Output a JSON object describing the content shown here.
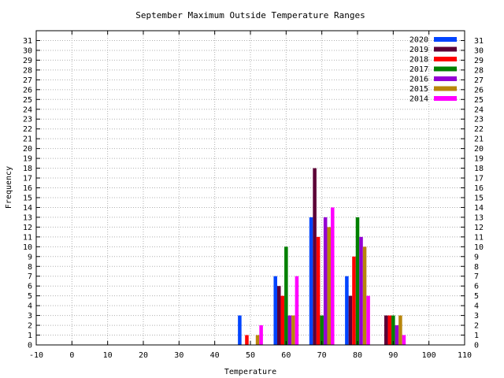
{
  "chart_data": {
    "type": "bar",
    "title": "September Maximum Outside Temperature Ranges",
    "xlabel": "Temperature",
    "ylabel": "Frequency",
    "xlim": [
      -10,
      110
    ],
    "ylim": [
      0,
      32
    ],
    "xticks": [
      "-10",
      "0",
      "10",
      "20",
      "30",
      "40",
      "50",
      "60",
      "70",
      "80",
      "90",
      "100",
      "110"
    ],
    "yticks": [
      "0",
      "1",
      "2",
      "3",
      "4",
      "5",
      "6",
      "7",
      "8",
      "9",
      "10",
      "11",
      "12",
      "13",
      "14",
      "15",
      "16",
      "17",
      "18",
      "19",
      "20",
      "21",
      "22",
      "23",
      "24",
      "25",
      "26",
      "27",
      "28",
      "29",
      "30",
      "31"
    ],
    "grid": true,
    "legend_position": "top-right",
    "categories": [
      50,
      60,
      70,
      80,
      90
    ],
    "series": [
      {
        "name": "2020",
        "color": "#0044ff",
        "values": [
          3,
          7,
          13,
          7,
          0
        ]
      },
      {
        "name": "2019",
        "color": "#5c0036",
        "values": [
          0,
          6,
          18,
          5,
          3
        ]
      },
      {
        "name": "2018",
        "color": "#ff0000",
        "values": [
          1,
          5,
          11,
          9,
          3
        ]
      },
      {
        "name": "2017",
        "color": "#008000",
        "values": [
          0,
          10,
          3,
          13,
          3
        ]
      },
      {
        "name": "2016",
        "color": "#9400d3",
        "values": [
          0,
          3,
          13,
          11,
          2
        ]
      },
      {
        "name": "2015",
        "color": "#b8860b",
        "values": [
          1,
          3,
          12,
          10,
          3
        ]
      },
      {
        "name": "2014",
        "color": "#ff00ff",
        "values": [
          2,
          7,
          14,
          5,
          1
        ]
      }
    ]
  }
}
